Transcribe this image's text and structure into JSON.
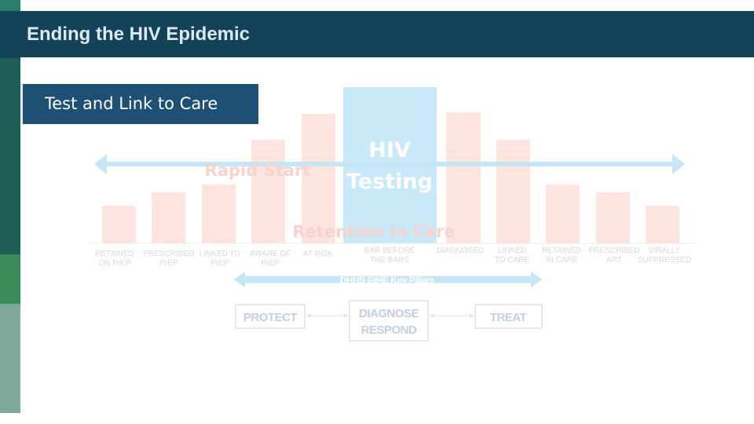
{
  "header": {
    "title": "Ending the HIV Epidemic"
  },
  "section_chip": {
    "label": "Test and Link to Care"
  },
  "diagram": {
    "colors": {
      "bar": "#fde4df",
      "highlight": "#c9e9f8",
      "arrow": "#c5e6f6",
      "label": "#d8d8d8",
      "pillar_border": "#e1e1e1",
      "pillar_text": "#c3cfe0"
    },
    "arrow_label": "Rapid Start",
    "highlight_label_line1": "HIV",
    "highlight_label_line2": "Testing",
    "retention_label": "Retention in Care",
    "bars": [
      {
        "line1": "RETAINED",
        "line2": "ON PrEP"
      },
      {
        "line1": "PRESCRIBED",
        "line2": "PrEP"
      },
      {
        "line1": "LINKED TO",
        "line2": "PrEP"
      },
      {
        "line1": "AWARE OF",
        "line2": "PrEP"
      },
      {
        "line1": "AT RISK",
        "line2": ""
      },
      {
        "line1": "BAR BEFORE",
        "line2": "THE BARS"
      },
      {
        "line1": "DIAGNOSED",
        "line2": ""
      },
      {
        "line1": "LINKED",
        "line2": "TO CARE"
      },
      {
        "line1": "RETAINED",
        "line2": "IN CARE"
      },
      {
        "line1": "PRESCRIBED",
        "line2": "ART"
      },
      {
        "line1": "VIRALLY",
        "line2": "SUPPRESSED"
      }
    ],
    "pillars_label": "DHHS EtHE Key Pillars",
    "pillars": [
      {
        "line1": "PROTECT",
        "line2": ""
      },
      {
        "line1": "DIAGNOSE",
        "line2": "RESPOND"
      },
      {
        "line1": "TREAT",
        "line2": ""
      }
    ]
  }
}
